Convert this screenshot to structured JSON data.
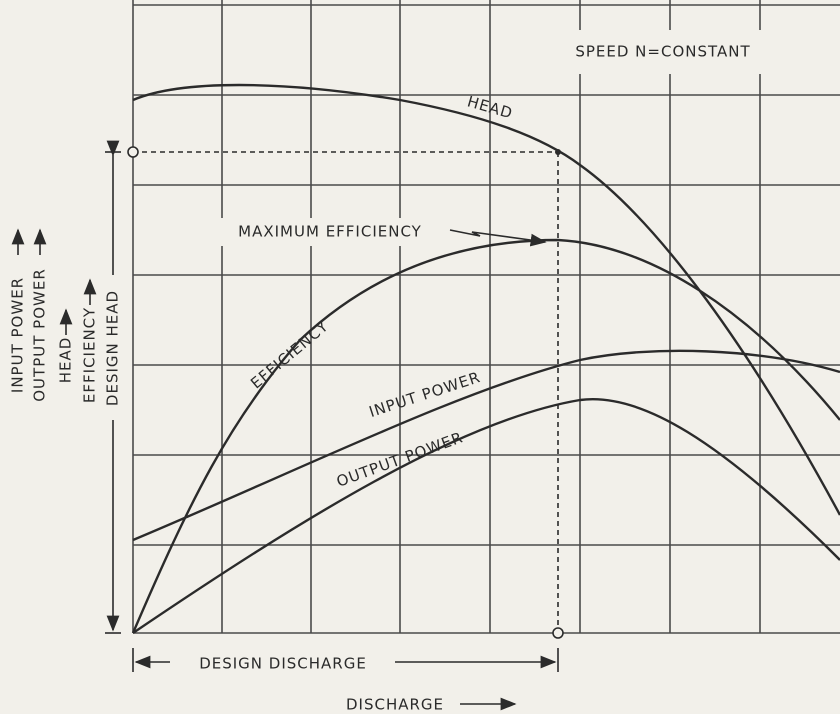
{
  "speed_note": "SPEED N=CONSTANT",
  "curve_labels": {
    "head": "HEAD",
    "maximum_efficiency": "MAXIMUM EFFICIENCY",
    "efficiency": "EFFICIENCY",
    "input_power": "INPUT POWER",
    "output_power": "OUTPUT POWER"
  },
  "y_axis_labels": {
    "input_power": "INPUT POWER",
    "output_power": "OUTPUT POWER",
    "head": "HEAD",
    "efficiency": "EFFICIENCY",
    "design_head": "DESIGN HEAD"
  },
  "x_axis_labels": {
    "design_discharge": "DESIGN DISCHARGE",
    "discharge": "DISCHARGE"
  }
}
